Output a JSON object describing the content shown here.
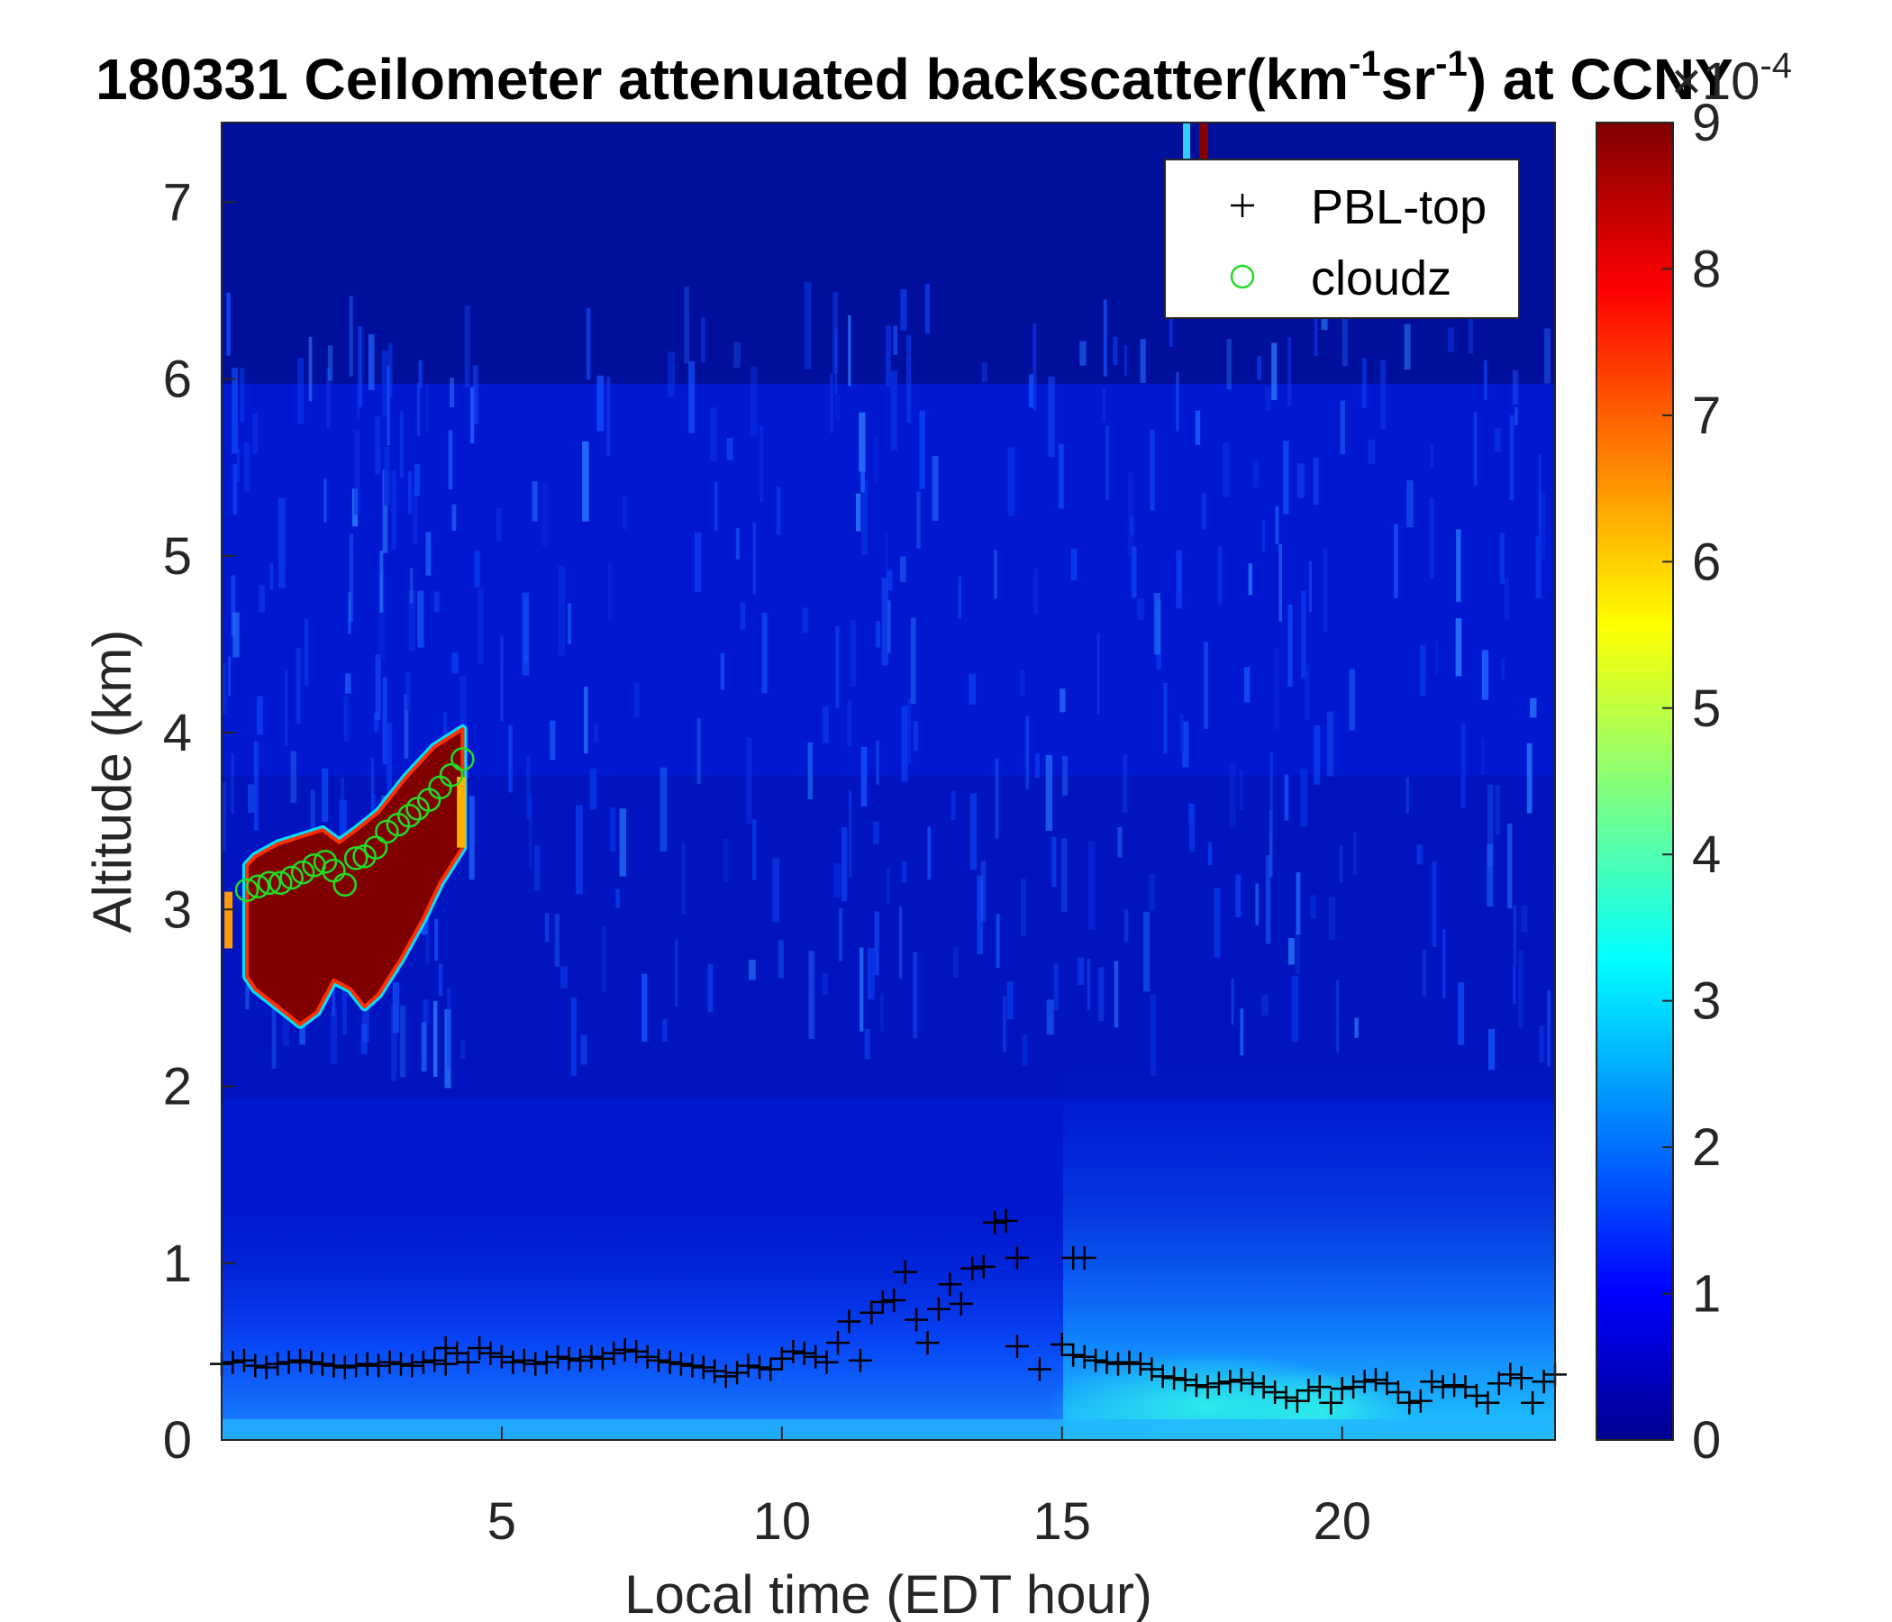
{
  "chart_data": {
    "type": "heatmap",
    "title_parts": {
      "prefix": "180331 Ceilometer attenuated backscatter(km",
      "sup1": "-1",
      "mid": "sr",
      "sup2": "-1",
      "suffix": ") at CCNY"
    },
    "xlabel": "Local time (EDT hour)",
    "ylabel": "Altitude (km)",
    "xlim": [
      0,
      23.8
    ],
    "ylim": [
      0,
      7.45
    ],
    "xticks": [
      "5",
      "10",
      "15",
      "20"
    ],
    "xtick_values": [
      5,
      10,
      15,
      20
    ],
    "yticks": [
      "0",
      "1",
      "2",
      "3",
      "4",
      "5",
      "6",
      "7"
    ],
    "ytick_values": [
      0,
      1,
      2,
      3,
      4,
      5,
      6,
      7
    ],
    "colorbar": {
      "colormap": "jet",
      "clim": [
        0,
        9
      ],
      "ticks": [
        "0",
        "1",
        "2",
        "3",
        "4",
        "5",
        "6",
        "7",
        "8",
        "9"
      ],
      "tick_values": [
        0,
        1,
        2,
        3,
        4,
        5,
        6,
        7,
        8,
        9
      ],
      "exponent_base": "×10",
      "exponent": "-4"
    },
    "legend": {
      "placement": "top-right",
      "entries": [
        {
          "name": "PBL-top",
          "marker": "+",
          "color": "#000000"
        },
        {
          "name": "cloudz",
          "marker": "o",
          "color": "#22dd22"
        }
      ]
    },
    "series": [
      {
        "name": "PBL-top",
        "x": [
          0.0,
          0.2,
          0.4,
          0.6,
          0.8,
          1.0,
          1.2,
          1.4,
          1.6,
          1.8,
          2.0,
          2.2,
          2.4,
          2.6,
          2.8,
          3.0,
          3.2,
          3.4,
          3.6,
          3.8,
          4.0,
          4.2,
          4.4,
          4.6,
          4.8,
          5.0,
          5.2,
          5.4,
          5.6,
          5.8,
          6.0,
          6.2,
          6.4,
          6.6,
          6.8,
          7.0,
          7.2,
          7.4,
          7.6,
          7.8,
          8.0,
          8.2,
          8.4,
          8.6,
          8.8,
          9.0,
          9.2,
          9.4,
          9.6,
          9.8,
          10.0,
          10.2,
          10.4,
          10.6,
          10.8,
          11.0,
          11.2,
          11.4,
          11.6,
          11.8,
          12.0,
          12.2,
          12.4,
          12.6,
          12.8,
          13.0,
          13.2,
          13.4,
          13.6,
          13.8,
          14.0,
          14.2,
          14.6,
          15.0,
          15.2,
          15.4,
          15.6,
          15.8,
          16.0,
          16.2,
          16.4,
          16.6,
          16.8,
          17.0,
          17.2,
          17.4,
          17.6,
          17.8,
          18.0,
          18.2,
          18.4,
          18.6,
          18.8,
          19.0,
          19.2,
          19.4,
          19.6,
          19.8,
          20.0,
          20.2,
          20.4,
          20.6,
          20.8,
          21.0,
          21.2,
          21.4,
          21.6,
          21.8,
          22.0,
          22.2,
          22.4,
          22.6,
          22.8,
          23.0,
          23.2,
          23.4,
          23.6,
          23.8
        ],
        "y": [
          0.43,
          0.44,
          0.45,
          0.42,
          0.41,
          0.43,
          0.44,
          0.45,
          0.44,
          0.43,
          0.42,
          0.41,
          0.42,
          0.43,
          0.42,
          0.44,
          0.43,
          0.42,
          0.44,
          0.45,
          0.43,
          0.49,
          0.44,
          0.52,
          0.49,
          0.47,
          0.44,
          0.45,
          0.43,
          0.44,
          0.47,
          0.46,
          0.45,
          0.47,
          0.46,
          0.49,
          0.51,
          0.5,
          0.47,
          0.45,
          0.44,
          0.43,
          0.42,
          0.41,
          0.39,
          0.36,
          0.38,
          0.42,
          0.41,
          0.4,
          0.46,
          0.5,
          0.49,
          0.47,
          0.44,
          0.55,
          0.67,
          0.45,
          0.72,
          0.78,
          0.79,
          0.95,
          0.68,
          0.55,
          0.74,
          0.88,
          0.77,
          0.97,
          0.98,
          1.23,
          1.24,
          0.53,
          0.4,
          0.54,
          0.48,
          0.47,
          0.45,
          0.44,
          0.43,
          0.44,
          0.43,
          0.4,
          0.36,
          0.35,
          0.34,
          0.31,
          0.3,
          0.32,
          0.33,
          0.34,
          0.32,
          0.3,
          0.27,
          0.24,
          0.22,
          0.28,
          0.3,
          0.21,
          0.29,
          0.3,
          0.33,
          0.34,
          0.32,
          0.27,
          0.21,
          0.22,
          0.33,
          0.3,
          0.31,
          0.3,
          0.25,
          0.21,
          0.32,
          0.37,
          0.35,
          0.21,
          0.33,
          0.37
        ],
        "extra_points": [
          [
            14.2,
            1.03
          ],
          [
            15.2,
            1.03
          ],
          [
            15.4,
            1.03
          ],
          [
            4.0,
            0.52
          ]
        ]
      },
      {
        "name": "cloudz",
        "x": [
          0.45,
          0.65,
          0.85,
          1.05,
          1.25,
          1.45,
          1.65,
          1.85,
          2.0,
          2.2,
          2.4,
          2.55,
          2.75,
          2.95,
          3.15,
          3.35,
          3.5,
          3.7,
          3.9,
          4.1,
          4.3
        ],
        "y": [
          3.11,
          3.13,
          3.15,
          3.15,
          3.18,
          3.21,
          3.25,
          3.27,
          3.22,
          3.14,
          3.29,
          3.3,
          3.35,
          3.44,
          3.48,
          3.53,
          3.57,
          3.62,
          3.69,
          3.76,
          3.85
        ]
      }
    ]
  }
}
